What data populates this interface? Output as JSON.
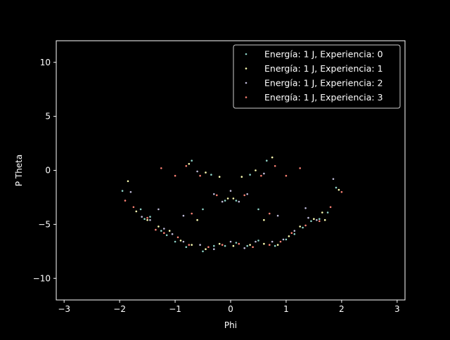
{
  "chart_data": {
    "type": "scatter",
    "title": "",
    "xlabel": "Phi",
    "ylabel": "P Theta",
    "xlim": [
      -3.1416,
      3.1416
    ],
    "ylim": [
      -12,
      12
    ],
    "xticks": [
      -3,
      -2,
      -1,
      0,
      1,
      2,
      3
    ],
    "yticks": [
      -10,
      -5,
      0,
      5,
      10
    ],
    "grid": false,
    "legend_position": "top-right",
    "background": "#000000",
    "series": [
      {
        "name": "Energía: 1 J, Experiencia: 0",
        "color": "#8dd3c7",
        "points": [
          [
            -1.95,
            -1.9
          ],
          [
            -1.62,
            -3.6
          ],
          [
            -1.55,
            -4.5
          ],
          [
            -1.45,
            -4.3
          ],
          [
            -1.25,
            -5.6
          ],
          [
            -1.15,
            -6.0
          ],
          [
            -1.0,
            -6.6
          ],
          [
            -0.8,
            -7.1
          ],
          [
            -0.5,
            -7.5
          ],
          [
            -0.3,
            -7.0
          ],
          [
            -0.1,
            -7.0
          ],
          [
            0.1,
            -6.7
          ],
          [
            0.3,
            -7.0
          ],
          [
            0.5,
            -6.5
          ],
          [
            0.8,
            -7.0
          ],
          [
            1.0,
            -6.4
          ],
          [
            1.15,
            -5.9
          ],
          [
            1.3,
            -5.3
          ],
          [
            1.45,
            -4.7
          ],
          [
            1.6,
            -4.5
          ],
          [
            1.75,
            -3.9
          ],
          [
            1.9,
            -1.6
          ],
          [
            -0.35,
            -0.4
          ],
          [
            0.35,
            -0.4
          ],
          [
            -0.1,
            -2.8
          ],
          [
            0.1,
            -2.8
          ],
          [
            -0.7,
            0.9
          ],
          [
            0.65,
            0.9
          ],
          [
            -0.5,
            -3.6
          ],
          [
            0.5,
            -3.6
          ]
        ]
      },
      {
        "name": "Energía: 1 J, Experiencia: 1",
        "color": "#feffb3",
        "points": [
          [
            -1.85,
            -1.0
          ],
          [
            -1.5,
            -4.6
          ],
          [
            -1.3,
            -5.2
          ],
          [
            -1.1,
            -5.6
          ],
          [
            -0.9,
            -6.5
          ],
          [
            -0.7,
            -6.9
          ],
          [
            -0.45,
            -7.3
          ],
          [
            -0.2,
            -6.8
          ],
          [
            0.05,
            -7.0
          ],
          [
            0.35,
            -6.9
          ],
          [
            0.6,
            -6.8
          ],
          [
            0.85,
            -6.9
          ],
          [
            1.05,
            -6.1
          ],
          [
            1.25,
            -5.2
          ],
          [
            1.5,
            -4.5
          ],
          [
            1.7,
            -4.6
          ],
          [
            1.95,
            -1.8
          ],
          [
            -0.75,
            0.6
          ],
          [
            0.75,
            1.2
          ],
          [
            -0.2,
            -0.6
          ],
          [
            0.2,
            -0.6
          ],
          [
            -0.05,
            -2.6
          ],
          [
            0.05,
            -2.6
          ],
          [
            -0.6,
            -4.6
          ],
          [
            0.6,
            -4.6
          ],
          [
            -1.7,
            -3.8
          ],
          [
            1.65,
            -3.9
          ],
          [
            -0.45,
            -0.2
          ],
          [
            0.45,
            0.0
          ]
        ]
      },
      {
        "name": "Energía: 1 J, Experiencia: 2",
        "color": "#bfbbd9",
        "points": [
          [
            -1.8,
            -2.0
          ],
          [
            -1.6,
            -4.3
          ],
          [
            -1.45,
            -4.6
          ],
          [
            -1.2,
            -5.4
          ],
          [
            -1.05,
            -5.9
          ],
          [
            -0.85,
            -6.6
          ],
          [
            -0.55,
            -6.9
          ],
          [
            -0.3,
            -7.3
          ],
          [
            0.0,
            -6.6
          ],
          [
            0.25,
            -7.2
          ],
          [
            0.45,
            -6.6
          ],
          [
            0.75,
            -6.6
          ],
          [
            0.95,
            -6.4
          ],
          [
            1.15,
            -5.6
          ],
          [
            1.4,
            -4.4
          ],
          [
            1.55,
            -4.6
          ],
          [
            1.85,
            -0.8
          ],
          [
            -0.6,
            -0.1
          ],
          [
            0.6,
            -0.3
          ],
          [
            -0.3,
            -2.2
          ],
          [
            0.3,
            -2.2
          ],
          [
            -0.15,
            -2.9
          ],
          [
            0.15,
            -2.9
          ],
          [
            -0.85,
            -4.2
          ],
          [
            0.85,
            -4.2
          ],
          [
            -1.3,
            -3.6
          ],
          [
            1.35,
            -3.5
          ],
          [
            0.0,
            -1.9
          ]
        ]
      },
      {
        "name": "Energía: 1 J, Experiencia: 3",
        "color": "#fa8174",
        "points": [
          [
            -1.9,
            -2.8
          ],
          [
            -1.75,
            -3.4
          ],
          [
            -1.5,
            -4.4
          ],
          [
            -1.35,
            -5.5
          ],
          [
            -1.2,
            -5.8
          ],
          [
            -0.95,
            -6.2
          ],
          [
            -0.75,
            -6.9
          ],
          [
            -0.4,
            -7.1
          ],
          [
            -0.15,
            -6.9
          ],
          [
            0.15,
            -6.8
          ],
          [
            0.4,
            -7.1
          ],
          [
            0.7,
            -6.9
          ],
          [
            0.9,
            -6.6
          ],
          [
            1.1,
            -5.8
          ],
          [
            1.35,
            -5.1
          ],
          [
            1.6,
            -4.7
          ],
          [
            1.8,
            -3.4
          ],
          [
            2.0,
            -2.0
          ],
          [
            -0.8,
            0.4
          ],
          [
            0.8,
            0.4
          ],
          [
            -0.55,
            -0.5
          ],
          [
            0.55,
            -0.5
          ],
          [
            -0.25,
            -2.3
          ],
          [
            0.25,
            -2.3
          ],
          [
            -1.0,
            -0.5
          ],
          [
            1.0,
            -0.5
          ],
          [
            -1.25,
            0.2
          ],
          [
            1.25,
            0.2
          ],
          [
            -0.7,
            -4.0
          ],
          [
            0.7,
            -4.0
          ]
        ]
      }
    ]
  }
}
